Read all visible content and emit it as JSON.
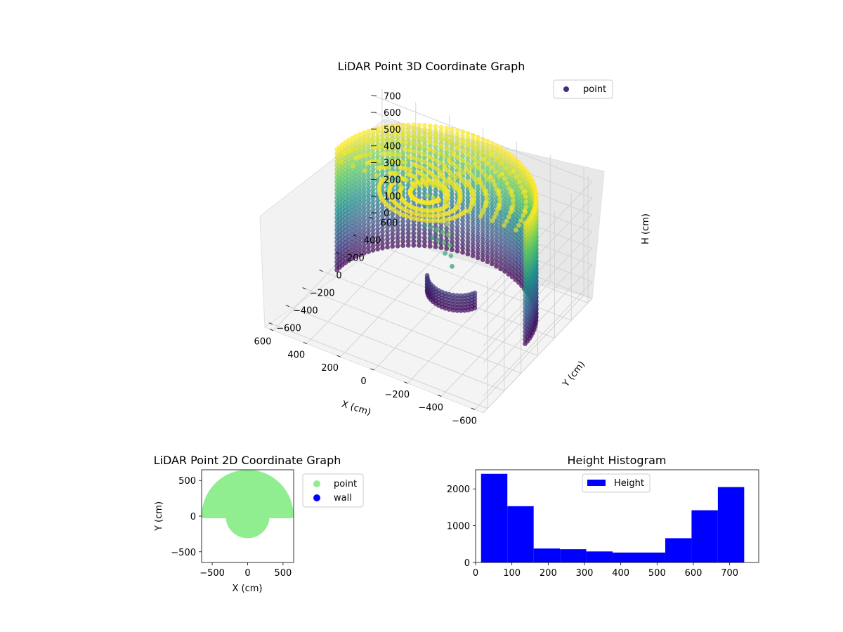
{
  "chart_data": [
    {
      "type": "scatter3d",
      "title": "LiDAR Point 3D Coordinate Graph",
      "xlabel": "X (cm)",
      "ylabel": "Y (cm)",
      "zlabel": "H (cm)",
      "x_ticks": [
        "−600",
        "−400",
        "−200",
        "0",
        "200",
        "400",
        "600"
      ],
      "y_ticks": [
        "−600",
        "−400",
        "−200",
        "0",
        "200",
        "400",
        "600"
      ],
      "z_ticks": [
        "0",
        "100",
        "200",
        "300",
        "400",
        "500",
        "600",
        "700"
      ],
      "xlim": [
        -650,
        650
      ],
      "ylim": [
        -650,
        650
      ],
      "zlim": [
        0,
        760
      ],
      "legend": [
        "point"
      ],
      "legend_position": "top-right",
      "colormap": "viridis",
      "shape": "semicircular wall of radius ~600 cm on the +Y side plus a smaller semicircular pocket of radius ~300 cm on the -Y side, heights 0–740 cm"
    },
    {
      "type": "scatter",
      "title": "LiDAR Point 2D Coordinate Graph",
      "xlabel": "X (cm)",
      "ylabel": "Y (cm)",
      "x_ticks": [
        "−500",
        "0",
        "500"
      ],
      "y_ticks": [
        "500",
        "0",
        "−500"
      ],
      "xlim": [
        -650,
        650
      ],
      "ylim": [
        -650,
        650
      ],
      "legend": [
        "point",
        "wall"
      ],
      "legend_colors": [
        "#90ee90",
        "#0000ff"
      ],
      "legend_position": "right outside",
      "series": [
        {
          "name": "point",
          "shape": "filled half-disk radius 620 cm (Y ≥ 0) plus half-disk radius 280 cm (Y ≤ 0)"
        }
      ]
    },
    {
      "type": "bar",
      "title": "Height Histogram",
      "legend": [
        "Height"
      ],
      "legend_position": "top-center",
      "bin_edges": [
        15,
        87.5,
        160,
        232.5,
        305,
        377.5,
        450,
        522.5,
        595,
        667.5,
        740
      ],
      "values": [
        2410,
        1530,
        380,
        360,
        300,
        270,
        270,
        660,
        1420,
        2050
      ],
      "x_ticks": [
        "0",
        "100",
        "200",
        "300",
        "400",
        "500",
        "600",
        "700"
      ],
      "y_ticks": [
        "0",
        "1000",
        "2000"
      ],
      "xlim": [
        0,
        780
      ],
      "ylim": [
        0,
        2520
      ],
      "bar_color": "#0000ff"
    }
  ]
}
